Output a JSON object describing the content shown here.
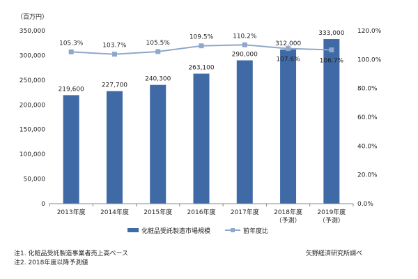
{
  "chart_data": {
    "type": "bar",
    "unit_label": "（百万円）",
    "categories": [
      [
        "2013年度"
      ],
      [
        "2014年度"
      ],
      [
        "2015年度"
      ],
      [
        "2016年度"
      ],
      [
        "2017年度"
      ],
      [
        "2018年度",
        "（予測）"
      ],
      [
        "2019年度",
        "（予測）"
      ]
    ],
    "series": [
      {
        "name": "化粧品受託製造市場規模",
        "type": "bar",
        "axis": "left",
        "color": "#3f6aa6",
        "values": [
          219600,
          227700,
          240300,
          263100,
          290000,
          312000,
          333000
        ],
        "labels": [
          "219,600",
          "227,700",
          "240,300",
          "263,100",
          "290,000",
          "312,000",
          "333,000"
        ]
      },
      {
        "name": "前年度比",
        "type": "line",
        "axis": "right",
        "color": "#8fa7c9",
        "values": [
          105.3,
          103.7,
          105.5,
          109.5,
          110.2,
          107.6,
          106.7
        ],
        "labels": [
          "105.3%",
          "103.7%",
          "105.5%",
          "109.5%",
          "110.2%",
          "107.6%",
          "106.7%"
        ]
      }
    ],
    "y_left": {
      "range": [
        0,
        350000
      ],
      "ticks": [
        "0",
        "50,000",
        "100,000",
        "150,000",
        "200,000",
        "250,000",
        "300,000",
        "350,000"
      ]
    },
    "y_right": {
      "range": [
        0,
        120
      ],
      "ticks": [
        "0.0%",
        "20.0%",
        "40.0%",
        "60.0%",
        "80.0%",
        "100.0%",
        "120.0%"
      ]
    },
    "grid": false,
    "legend_position": "bottom"
  },
  "notes": {
    "note1": "注1. 化粧品受託製造事業者売上高ベース",
    "note2": "注2. 2018年度以降予測値",
    "source": "矢野経済研究所調べ"
  }
}
